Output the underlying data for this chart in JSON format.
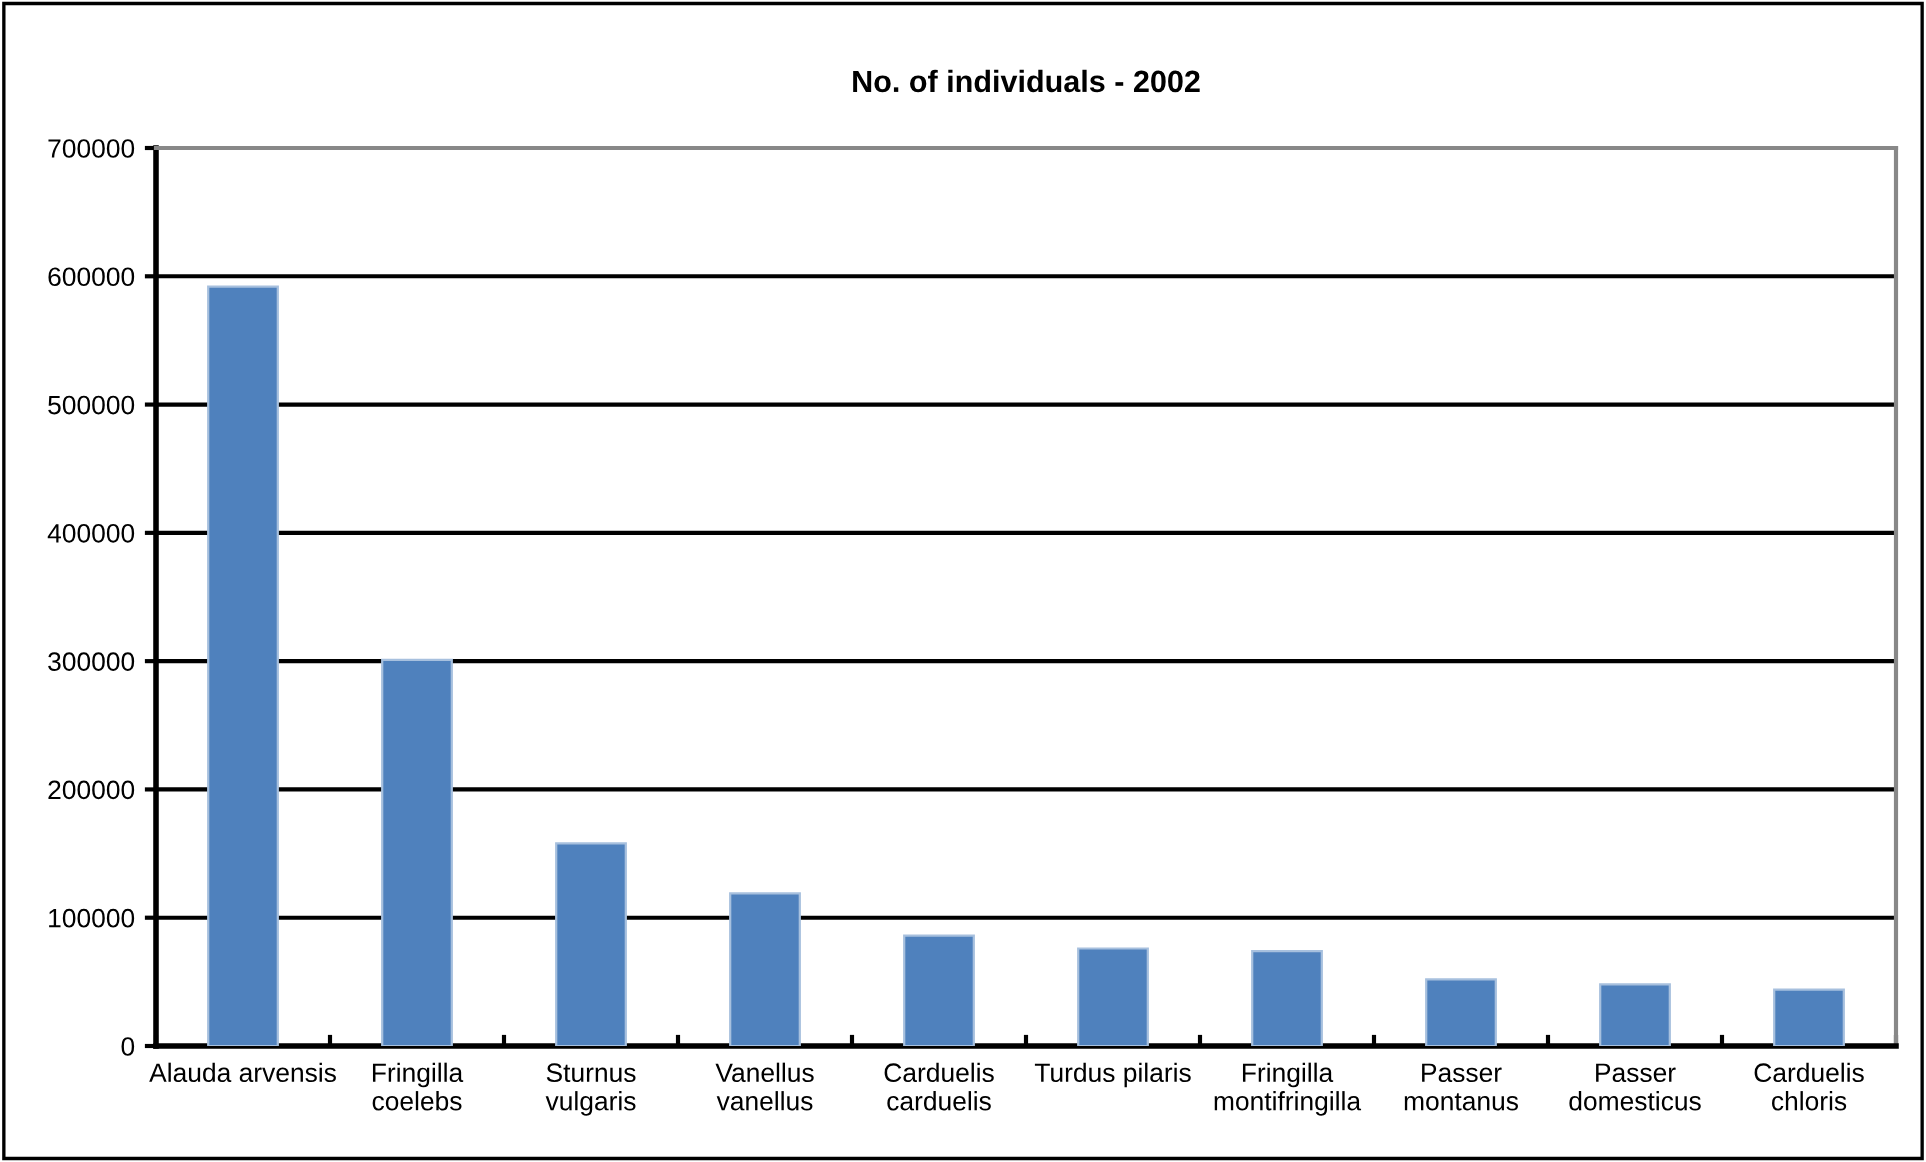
{
  "chart_data": {
    "type": "bar",
    "title": "No. of individuals - 2002",
    "categories": [
      "Alauda arvensis",
      "Fringilla\ncoelebs",
      "Sturnus\nvulgaris",
      "Vanellus\nvanellus",
      "Carduelis\ncarduelis",
      "Turdus pilaris",
      "Fringilla\nmontifringilla",
      "Passer\nmontanus",
      "Passer\ndomesticus",
      "Carduelis\nchloris"
    ],
    "values": [
      592000,
      301000,
      158000,
      119000,
      86000,
      76000,
      74000,
      52000,
      48000,
      44000
    ],
    "color": "#4f81bd",
    "ylim": [
      0,
      700000
    ],
    "yticks": [
      0,
      100000,
      200000,
      300000,
      400000,
      500000,
      600000,
      700000
    ],
    "grid": "y",
    "legend": false
  }
}
